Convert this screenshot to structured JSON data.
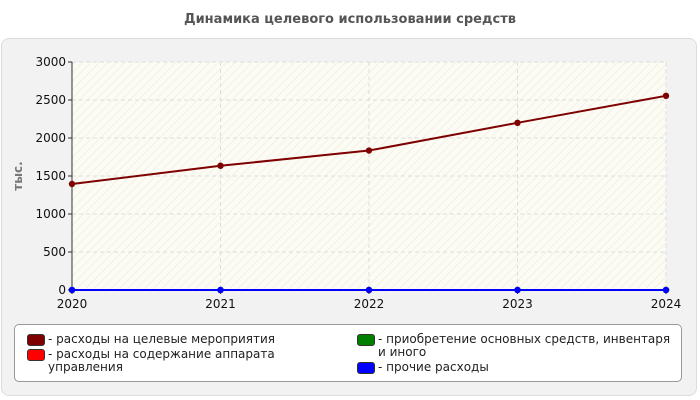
{
  "title": "Динамика целевого использовании средств",
  "legend_prefix": "- ",
  "chart_data": {
    "type": "line",
    "title": "Динамика целевого использовании средств",
    "xlabel": "",
    "ylabel": "тыс.",
    "categories": [
      "2020",
      "2021",
      "2022",
      "2023",
      "2024"
    ],
    "ylim": [
      0,
      3000
    ],
    "yticks": [
      0,
      500,
      1000,
      1500,
      2000,
      2500,
      3000
    ],
    "grid": true,
    "legend_position": "bottom",
    "series": [
      {
        "name": "расходы на целевые мероприятия",
        "color": "#7f0000",
        "values": [
          1395,
          1635,
          1835,
          2200,
          2555
        ]
      },
      {
        "name": "расходы на содержание аппарата управления",
        "color": "#ff0000",
        "values": [
          0,
          0,
          0,
          0,
          0
        ]
      },
      {
        "name": "приобретение основных средств, инвентаря и иного",
        "color": "#007f00",
        "values": [
          0,
          0,
          0,
          0,
          0
        ]
      },
      {
        "name": "прочие расходы",
        "color": "#0000ff",
        "values": [
          0,
          0,
          0,
          0,
          0
        ]
      }
    ]
  }
}
